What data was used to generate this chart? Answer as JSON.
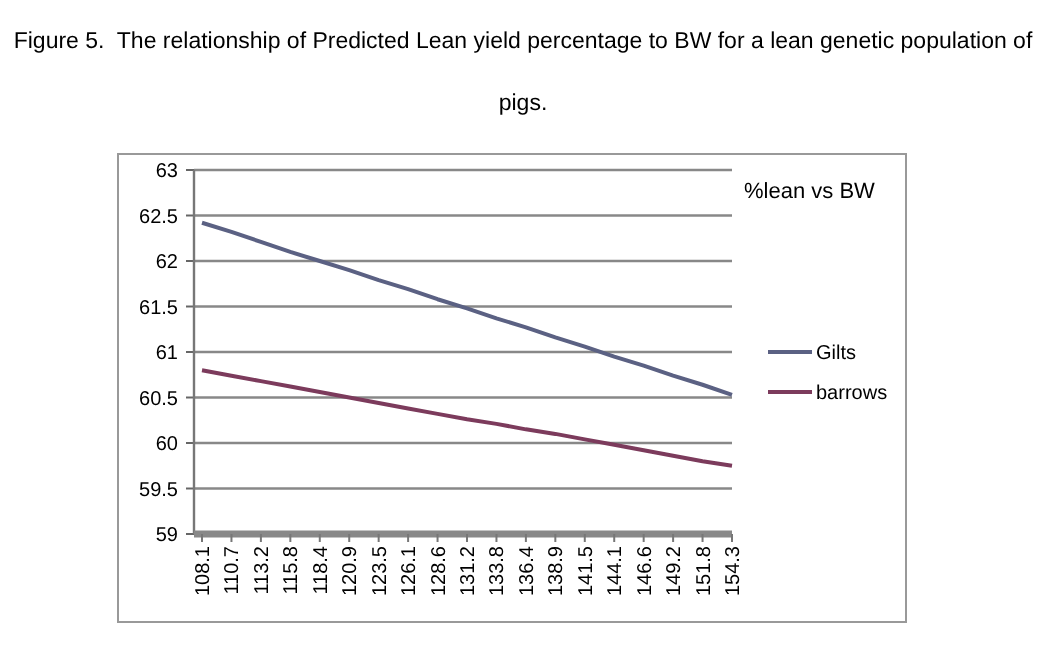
{
  "chart_data": {
    "type": "line",
    "title": "Figure 5.  The relationship of Predicted Lean yield percentage to BW for a lean genetic population of pigs.",
    "subtitle": "%lean vs BW",
    "categories": [
      "108.1",
      "110.7",
      "113.2",
      "115.8",
      "118.4",
      "120.9",
      "123.5",
      "126.1",
      "128.6",
      "131.2",
      "133.8",
      "136.4",
      "138.9",
      "141.5",
      "144.1",
      "146.6",
      "149.2",
      "151.8",
      "154.3"
    ],
    "series": [
      {
        "name": "Gilts",
        "color": "#5b6183",
        "values": [
          62.42,
          62.32,
          62.21,
          62.1,
          62.0,
          61.9,
          61.79,
          61.69,
          61.58,
          61.48,
          61.37,
          61.27,
          61.16,
          61.06,
          60.95,
          60.85,
          60.74,
          60.64,
          60.53
        ]
      },
      {
        "name": "barrows",
        "color": "#7c3b5c",
        "values": [
          60.8,
          60.74,
          60.68,
          60.62,
          60.56,
          60.5,
          60.44,
          60.38,
          60.32,
          60.26,
          60.21,
          60.15,
          60.1,
          60.04,
          59.98,
          59.92,
          59.86,
          59.8,
          59.75
        ]
      }
    ],
    "ylim": [
      59,
      63
    ],
    "yticks": [
      59,
      59.5,
      60,
      60.5,
      61,
      61.5,
      62,
      62.5,
      63
    ],
    "grid": "y",
    "legend": "right",
    "marker": "none",
    "line_style": "solid"
  }
}
